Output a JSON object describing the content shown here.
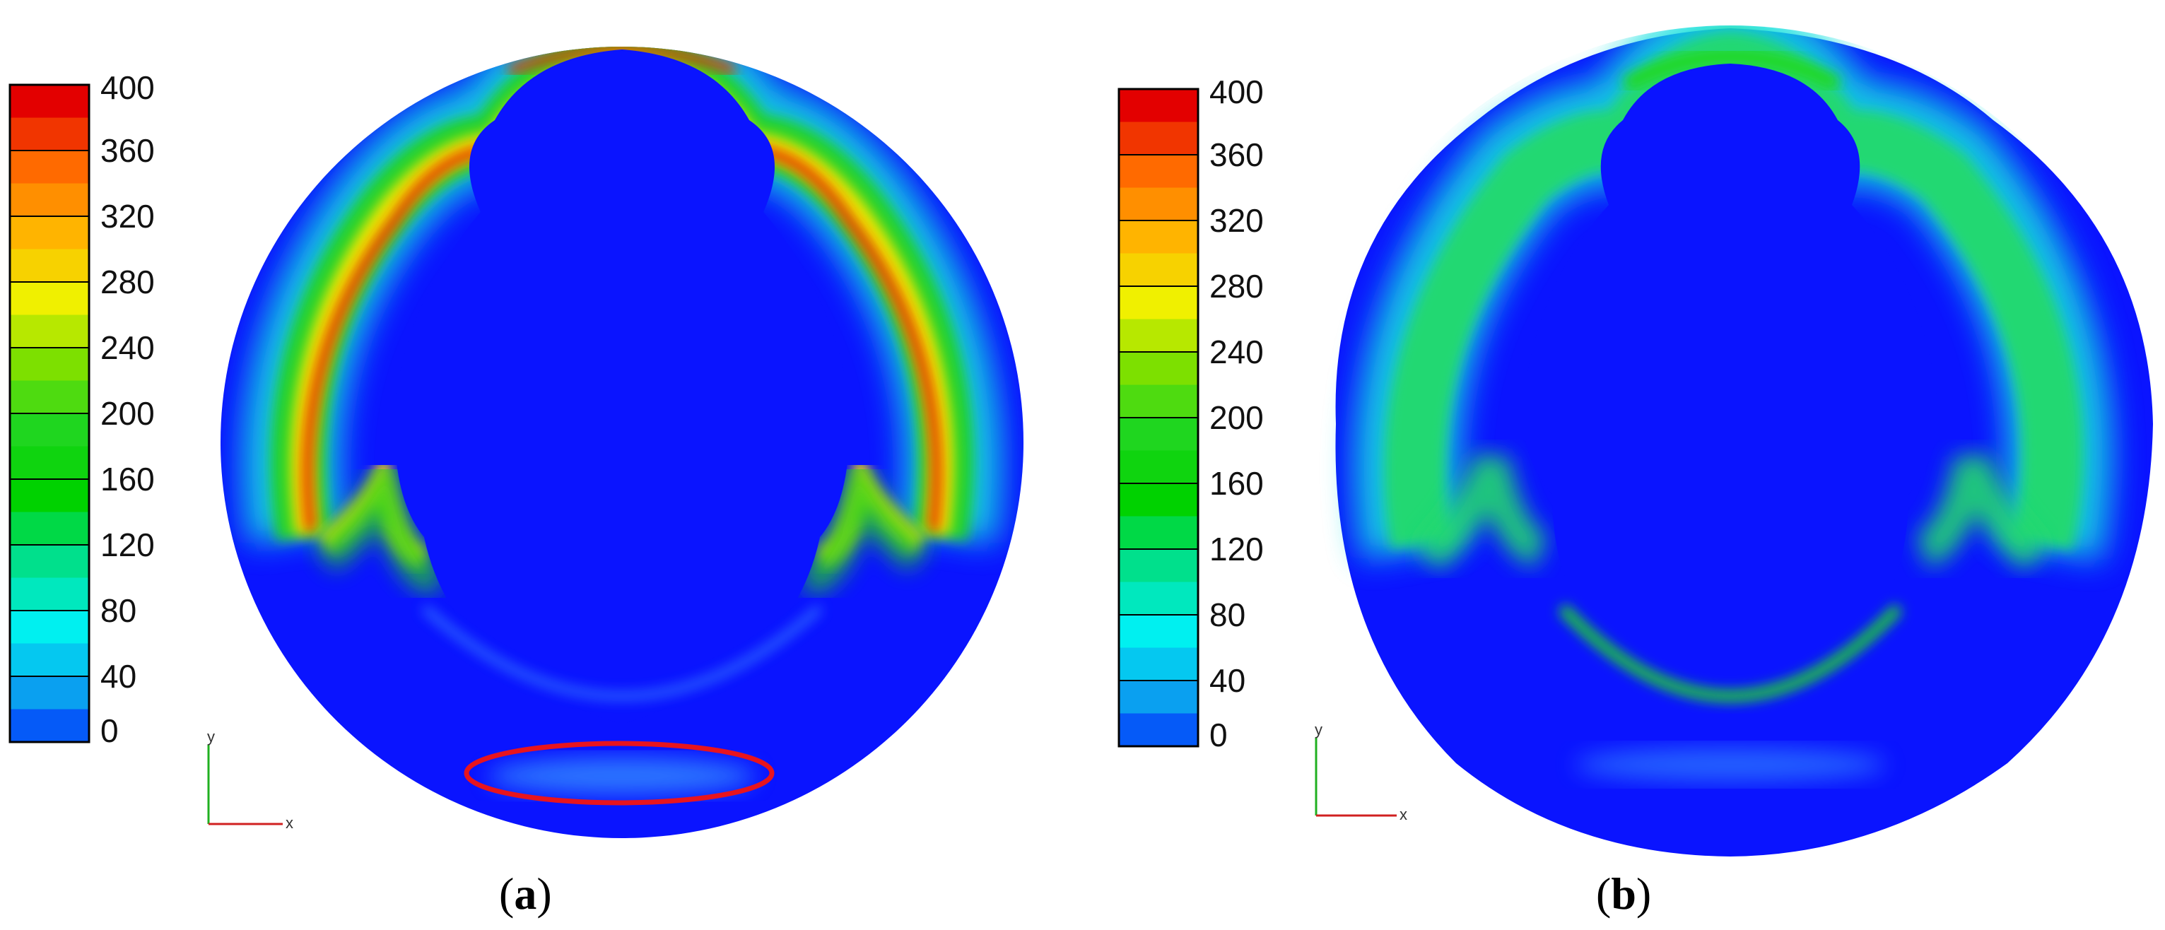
{
  "colorbar_ticks": [
    "400",
    "360",
    "320",
    "280",
    "240",
    "200",
    "160",
    "120",
    "80",
    "40",
    "0"
  ],
  "colorbar_colors": [
    "#e30000",
    "#ff6a00",
    "#ffb400",
    "#f0f000",
    "#7de000",
    "#1fd61f",
    "#00d200",
    "#00e08c",
    "#00f0f0",
    "#0aa0f0",
    "#0014ff"
  ],
  "axis": {
    "y": "y",
    "x": "x"
  },
  "panels": [
    {
      "id": "a",
      "label_open": "(",
      "label_letter": "a",
      "label_close": ")",
      "highlight": "red-ellipse"
    },
    {
      "id": "b",
      "label_open": "(",
      "label_letter": "b",
      "label_close": ")"
    }
  ]
}
